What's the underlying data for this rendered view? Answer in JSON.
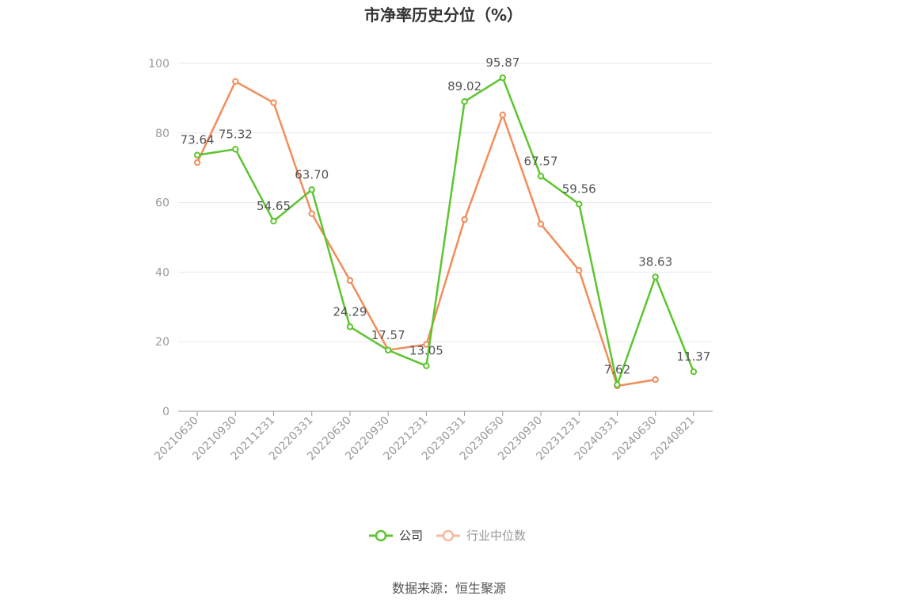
{
  "source": "数据来源：恒生聚源",
  "colors": {
    "company": "#5cc52f",
    "industry": "#f28d5b",
    "industry_legend": "#f6b9a0",
    "grid": "#e6e8ef",
    "axis": "#999999"
  },
  "chart_data": {
    "type": "line",
    "title": "市净率历史分位（%）",
    "xlabel": "",
    "ylabel": "",
    "ylim": [
      0,
      100
    ],
    "yticks": [
      0,
      20,
      40,
      60,
      80,
      100
    ],
    "grid": true,
    "legend_position": "bottom",
    "categories": [
      "20210630",
      "20210930",
      "20211231",
      "20220331",
      "20220630",
      "20220930",
      "20221231",
      "20230331",
      "20230630",
      "20230930",
      "20231231",
      "20240331",
      "20240630",
      "20240821"
    ],
    "series": [
      {
        "name": "公司",
        "values": [
          73.64,
          75.32,
          54.65,
          63.7,
          24.29,
          17.57,
          13.05,
          89.02,
          95.87,
          67.57,
          59.56,
          7.62,
          38.63,
          11.37
        ],
        "labels": [
          "73.64",
          "75.32",
          "54.65",
          "63.70",
          "24.29",
          "17.57",
          "13.05",
          "89.02",
          "95.87",
          "67.57",
          "59.56",
          "7.62",
          "38.63",
          "11.37"
        ]
      },
      {
        "name": "行业中位数",
        "values": [
          71.5,
          94.8,
          88.7,
          56.8,
          37.6,
          17.6,
          19.2,
          55.1,
          85.2,
          53.8,
          40.5,
          7.3,
          9.1,
          null
        ]
      }
    ]
  }
}
